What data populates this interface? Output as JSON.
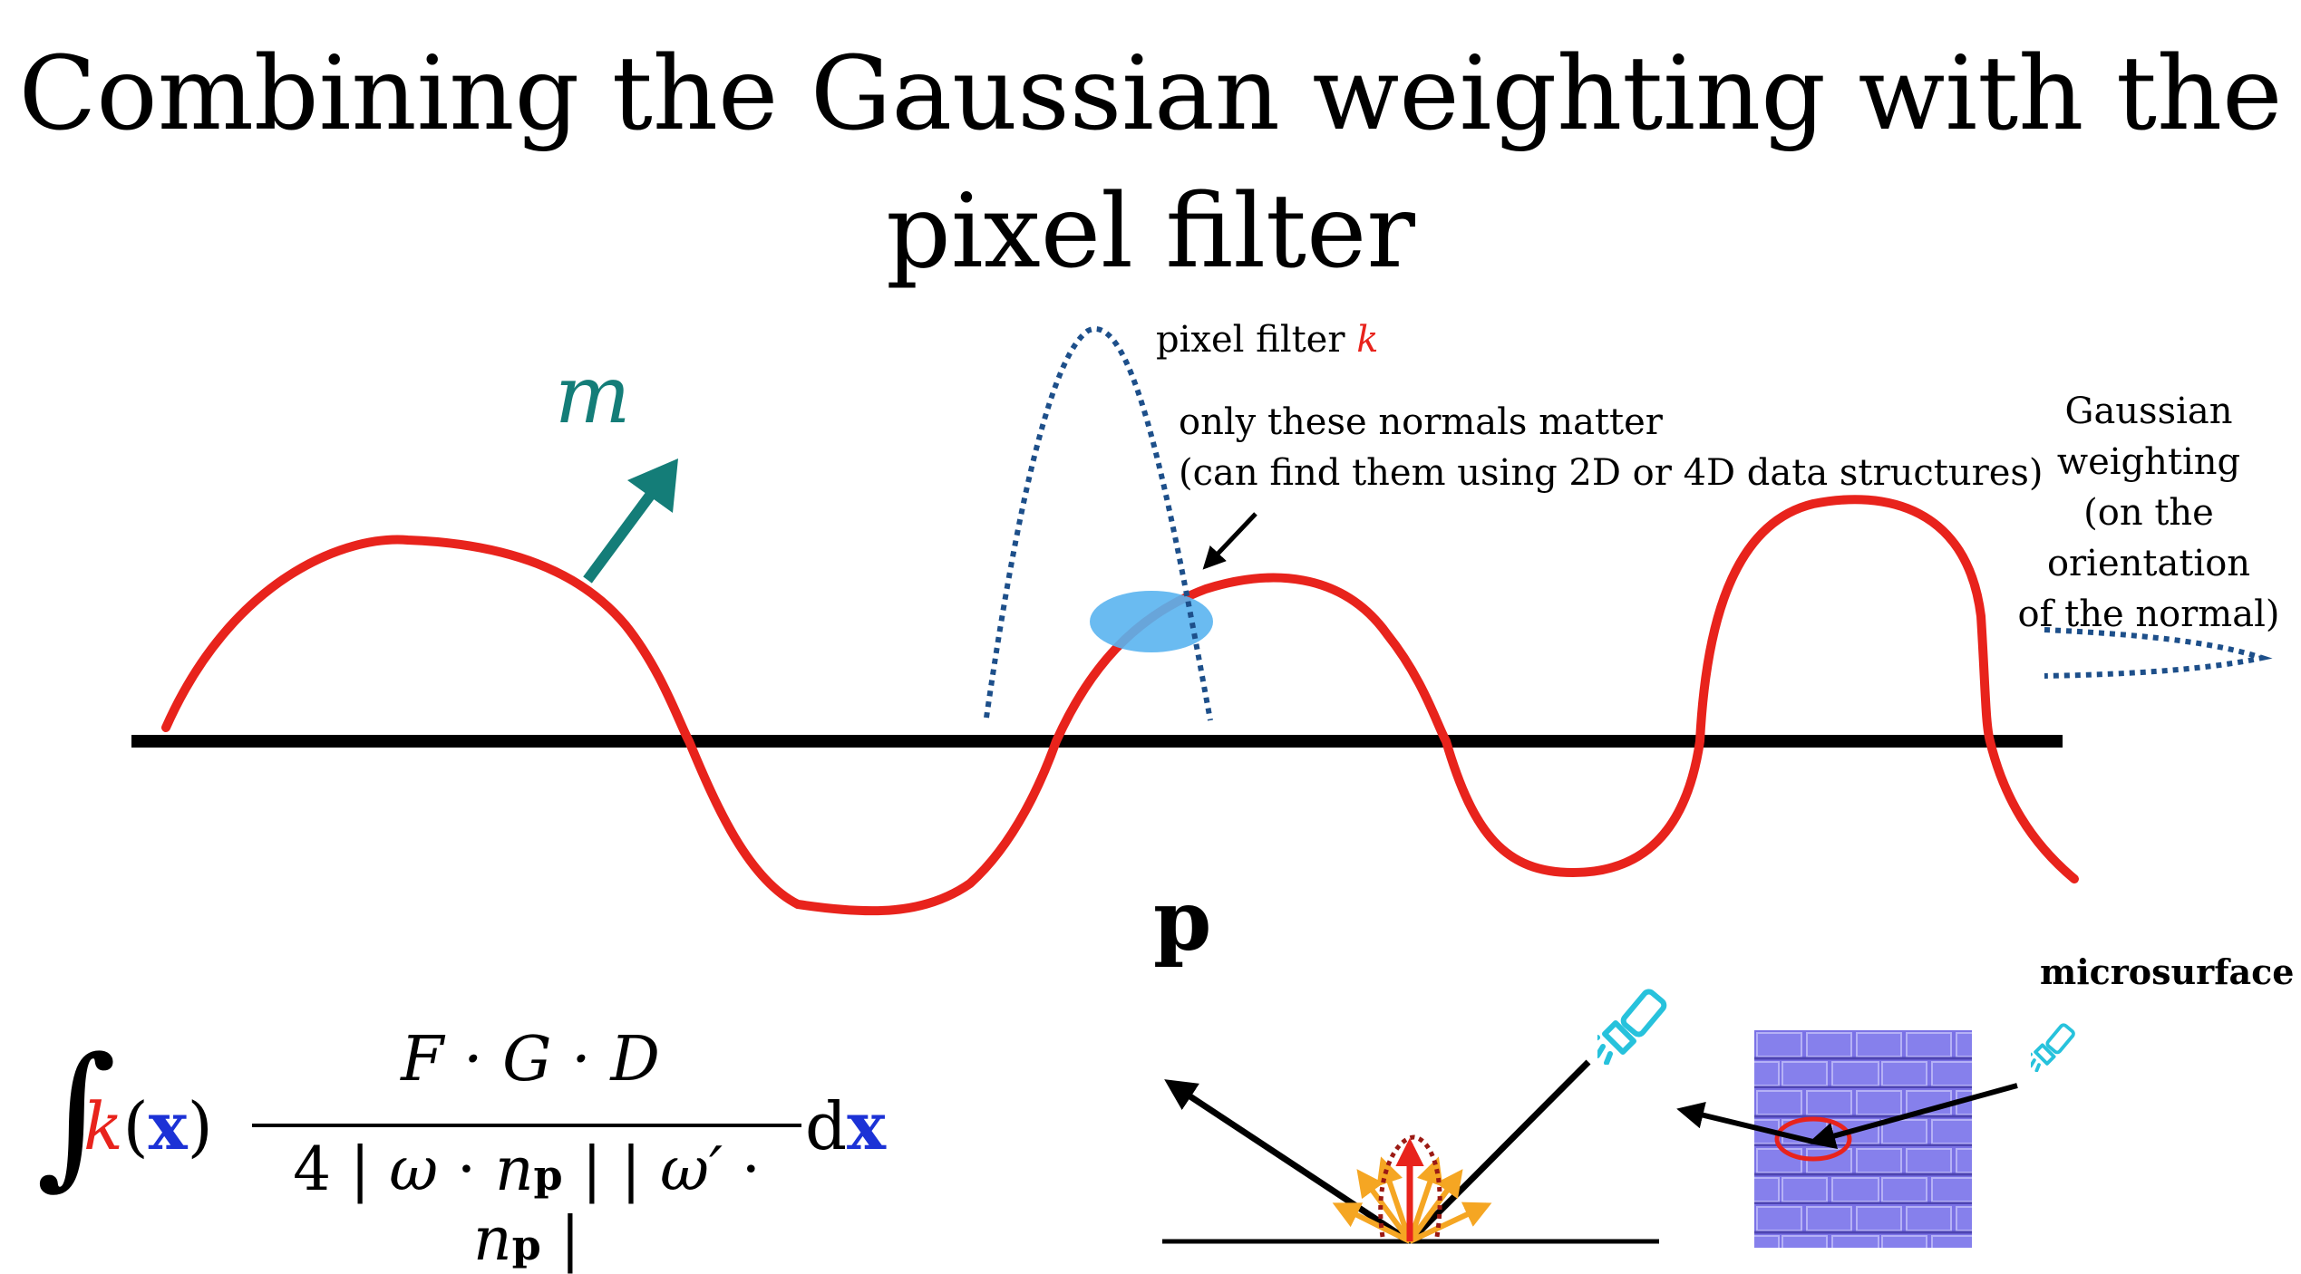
{
  "title": {
    "line1": "Combining the Gaussian weighting with the",
    "line2": "pixel filter"
  },
  "labels": {
    "pixel_filter": "pixel filter ",
    "pixel_filter_symbol": "k",
    "normals_line1": "only these normals matter",
    "normals_line2": "(can find them using 2D or 4D data structures)",
    "gaussian_line1": "Gaussian",
    "gaussian_line2": "weighting",
    "gaussian_line3": "(on the orientation",
    "gaussian_line4": "of the normal)",
    "normal_symbol": "m",
    "point_symbol": "p",
    "microsurface": "microsurface"
  },
  "formula": {
    "integral": "∫",
    "k": "k",
    "open": "(",
    "x": "x",
    "close": ")",
    "numerator": "F · G · D",
    "den_a": "4 | ",
    "den_omega": "ω",
    "den_dot1": " · ",
    "den_n1": "n",
    "den_p1": "p",
    "den_mid": " | | ",
    "den_omega_prime": "ω′",
    "den_dot2": " · ",
    "den_n2": "n",
    "den_p2": "p",
    "den_end": " |",
    "d": "d",
    "dx": "x"
  },
  "colors": {
    "surface_curve": "#e8231c",
    "normal_arrow": "#147d78",
    "dotted_lobes": "#1d4f8a",
    "highlight_ellipse": "#5ab4f0",
    "light_icon": "#27c2dc",
    "reflection_lobe": "#f5a623",
    "normal_map": "#7b72e6"
  },
  "icons": {
    "light": "flashlight-icon"
  }
}
